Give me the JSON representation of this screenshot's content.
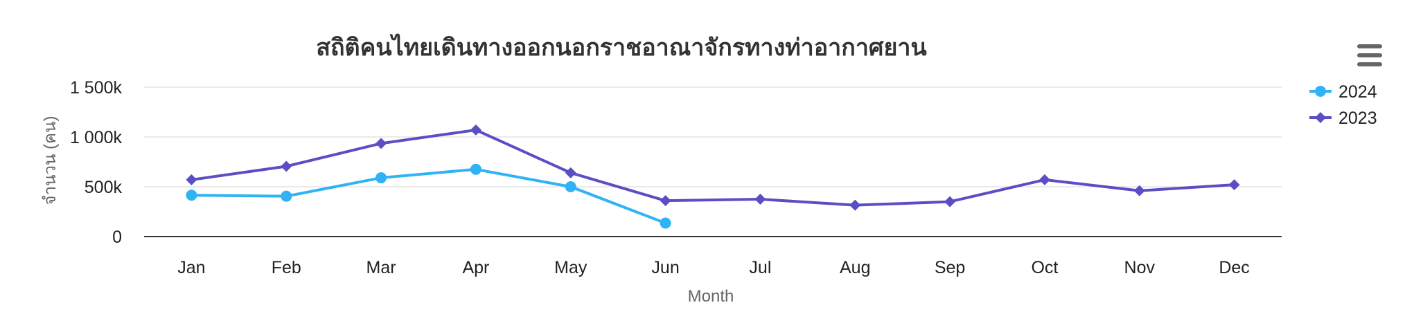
{
  "chart_data": {
    "type": "line",
    "title": "สถิติคนไทยเดินทางออกนอกราชอาณาจักรทางท่าอากาศยาน",
    "xlabel": "Month",
    "ylabel": "จำนวน (คน)",
    "categories": [
      "Jan",
      "Feb",
      "Mar",
      "Apr",
      "May",
      "Jun",
      "Jul",
      "Aug",
      "Sep",
      "Oct",
      "Nov",
      "Dec"
    ],
    "y_ticks": [
      0,
      500000,
      1000000,
      1500000
    ],
    "y_tick_labels": [
      "0",
      "500k",
      "1 000k",
      "1 500k"
    ],
    "ylim": [
      0,
      1500000
    ],
    "grid": true,
    "legend_position": "top-right",
    "series": [
      {
        "name": "2024",
        "color": "#2fb3f5",
        "marker": "circle",
        "values": [
          415000,
          405000,
          590000,
          675000,
          500000,
          135000,
          null,
          null,
          null,
          null,
          null,
          null
        ]
      },
      {
        "name": "2023",
        "color": "#5b4ec4",
        "marker": "diamond",
        "values": [
          570000,
          705000,
          935000,
          1070000,
          640000,
          360000,
          375000,
          315000,
          350000,
          570000,
          460000,
          520000
        ]
      }
    ]
  },
  "menu_icon": "hamburger-menu-icon"
}
